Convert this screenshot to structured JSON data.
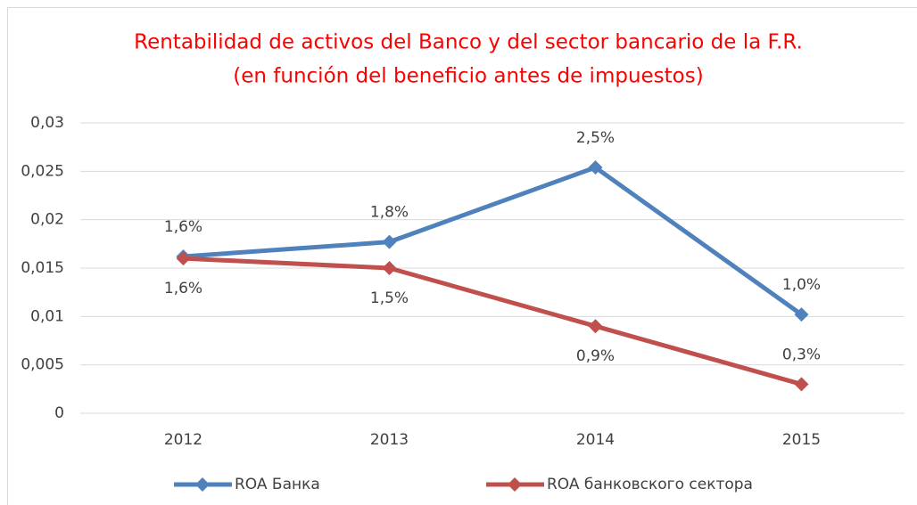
{
  "chart_data": {
    "type": "line",
    "title": "Rentabilidad de activos del Banco y del sector bancario de la F.R.",
    "subtitle": "(en función del beneficio antes de impuestos)",
    "categories": [
      "2012",
      "2013",
      "2014",
      "2015"
    ],
    "series": [
      {
        "name": "ROA Банка",
        "color": "#4f81bd",
        "values": [
          0.0162,
          0.0177,
          0.0254,
          0.0102
        ],
        "value_labels": [
          "1,6%",
          "1,8%",
          "2,5%",
          "1,0%"
        ]
      },
      {
        "name": "ROA банковского сектора",
        "color": "#c0504d",
        "values": [
          0.016,
          0.015,
          0.009,
          0.003
        ],
        "value_labels": [
          "1,6%",
          "1,5%",
          "0,9%",
          "0,3%"
        ]
      }
    ],
    "ylim": [
      0,
      0.03
    ],
    "yticks": [
      0,
      {
        "value": 0.005,
        "label": "0,005"
      },
      {
        "value": 0.01,
        "label": "0,01"
      },
      {
        "value": 0.015,
        "label": "0,015"
      },
      {
        "value": 0.02,
        "label": "0,02"
      },
      {
        "value": 0.025,
        "label": "0,025"
      },
      {
        "value": 0.03,
        "label": "0,03"
      }
    ],
    "grid": true,
    "legend": "bottom"
  }
}
